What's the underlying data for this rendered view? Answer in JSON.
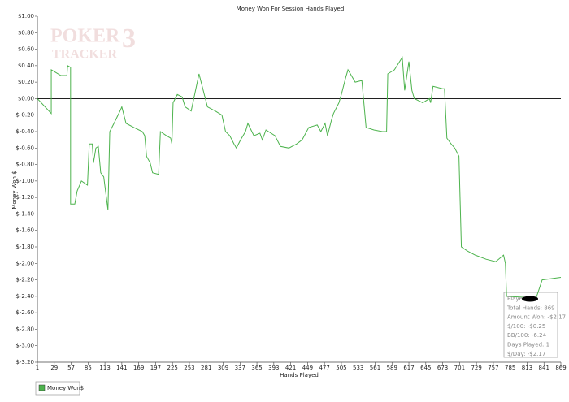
{
  "chart_data": {
    "type": "line",
    "title": "Money Won For Session Hands Played",
    "xlabel": "Hands Played",
    "ylabel": "Money Won $",
    "watermark": {
      "line1": "POKER",
      "line2": "TRACKER",
      "mark": "3"
    },
    "x": [
      1,
      24,
      24,
      40,
      50,
      51,
      56,
      56,
      63,
      67,
      74,
      84,
      87,
      92,
      94,
      98,
      102,
      106,
      111,
      118,
      121,
      128,
      138,
      141,
      148,
      161,
      175,
      179,
      182,
      188,
      192,
      202,
      205,
      215,
      222,
      224,
      226,
      233,
      241,
      246,
      256,
      269,
      276,
      283,
      296,
      307,
      313,
      320,
      327,
      331,
      338,
      346,
      350,
      360,
      370,
      374,
      380,
      395,
      404,
      418,
      431,
      440,
      451,
      465,
      471,
      478,
      482,
      489,
      492,
      501,
      505,
      512,
      516,
      528,
      539,
      546,
      559,
      573,
      580,
      582,
      593,
      606,
      610,
      617,
      622,
      626,
      640,
      651,
      653,
      657,
      673,
      676,
      680,
      687,
      693,
      700,
      704,
      714,
      727,
      745,
      761,
      774,
      777,
      779,
      828,
      838,
      869
    ],
    "series": [
      {
        "name": "Money Won$",
        "color": "#4db34d",
        "values": [
          0,
          -0.18,
          0.35,
          0.28,
          0.28,
          0.4,
          0.38,
          -1.28,
          -1.28,
          -1.12,
          -1.0,
          -1.05,
          -0.55,
          -0.55,
          -0.78,
          -0.6,
          -0.58,
          -0.9,
          -0.95,
          -1.35,
          -0.4,
          -0.3,
          -0.15,
          -0.1,
          -0.3,
          -0.35,
          -0.4,
          -0.45,
          -0.7,
          -0.78,
          -0.9,
          -0.92,
          -0.4,
          -0.45,
          -0.48,
          -0.55,
          -0.05,
          0.05,
          0.02,
          -0.1,
          -0.15,
          0.3,
          0.1,
          -0.1,
          -0.15,
          -0.2,
          -0.4,
          -0.45,
          -0.55,
          -0.6,
          -0.5,
          -0.4,
          -0.3,
          -0.45,
          -0.42,
          -0.5,
          -0.38,
          -0.45,
          -0.58,
          -0.6,
          -0.55,
          -0.5,
          -0.35,
          -0.32,
          -0.4,
          -0.3,
          -0.45,
          -0.25,
          -0.18,
          -0.05,
          0.05,
          0.25,
          0.35,
          0.2,
          0.22,
          -0.35,
          -0.38,
          -0.4,
          -0.4,
          0.3,
          0.35,
          0.5,
          0.1,
          0.45,
          0.1,
          0.0,
          -0.05,
          0.0,
          -0.05,
          0.15,
          0.12,
          0.12,
          -0.48,
          -0.55,
          -0.6,
          -0.7,
          -1.8,
          -1.85,
          -1.9,
          -1.95,
          -1.98,
          -1.9,
          -2.0,
          -2.4,
          -2.42,
          -2.2,
          -2.17
        ]
      }
    ],
    "xlim": [
      1,
      869
    ],
    "xticks": [
      1,
      29,
      57,
      85,
      113,
      141,
      169,
      197,
      225,
      253,
      281,
      309,
      337,
      365,
      393,
      421,
      449,
      477,
      505,
      533,
      561,
      589,
      617,
      645,
      673,
      701,
      729,
      757,
      785,
      813,
      841,
      869
    ],
    "ylim": [
      -3.2,
      1.0
    ],
    "yticks": [
      {
        "value": 1.0,
        "label": "$1.00"
      },
      {
        "value": 0.8,
        "label": "$0.80"
      },
      {
        "value": 0.6,
        "label": "$0.60"
      },
      {
        "value": 0.4,
        "label": "$0.40"
      },
      {
        "value": 0.2,
        "label": "$0.20"
      },
      {
        "value": 0,
        "label": "$0.00"
      },
      {
        "value": -0.2,
        "label": "$-0.20"
      },
      {
        "value": -0.4,
        "label": "$-0.40"
      },
      {
        "value": -0.6,
        "label": "$-0.60"
      },
      {
        "value": -0.8,
        "label": "$-0.80"
      },
      {
        "value": -1.0,
        "label": "$-1.00"
      },
      {
        "value": -1.2,
        "label": "$-1.20"
      },
      {
        "value": -1.4,
        "label": "$-1.40"
      },
      {
        "value": -1.6,
        "label": "$-1.60"
      },
      {
        "value": -1.8,
        "label": "$-1.80"
      },
      {
        "value": -2.0,
        "label": "$-2.00"
      },
      {
        "value": -2.2,
        "label": "$-2.20"
      },
      {
        "value": -2.4,
        "label": "$-2.40"
      },
      {
        "value": -2.6,
        "label": "$-2.60"
      },
      {
        "value": -2.8,
        "label": "$-2.80"
      },
      {
        "value": -3.0,
        "label": "$-3.00"
      },
      {
        "value": -3.2,
        "label": "$-3.20"
      }
    ],
    "zero_line": true,
    "grid": false,
    "info_box": [
      "Player:",
      "Total Hands: 869",
      "Amount Won: -$2.17",
      "$/100: -$0.25",
      "BB/100: -6.24",
      "Days Played: 1",
      "$/Day: -$2.17"
    ]
  }
}
